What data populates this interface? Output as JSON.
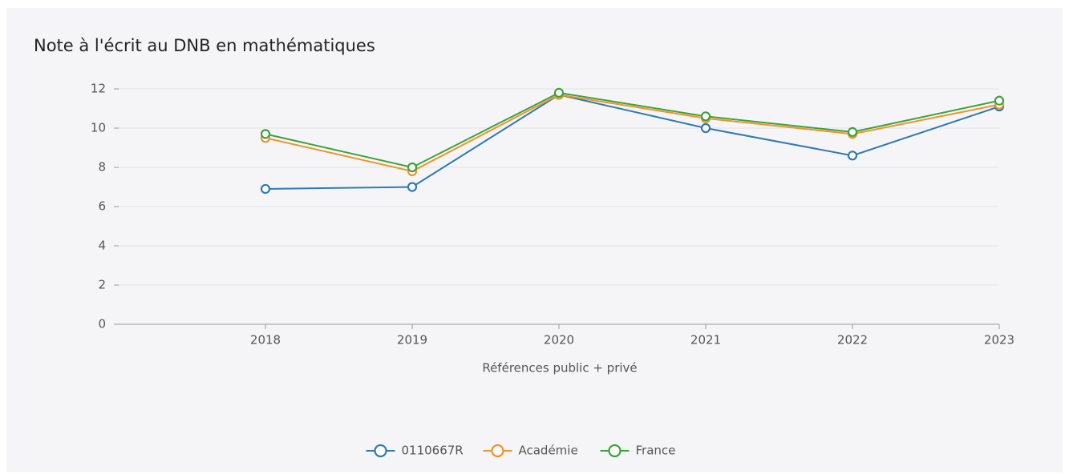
{
  "chart_data": {
    "type": "line",
    "title": "Note à l'écrit au DNB en mathématiques",
    "x_label": "Références public + privé",
    "x": [
      2018,
      2019,
      2020,
      2021,
      2022,
      2023
    ],
    "xlim": [
      2017,
      2023
    ],
    "xticks": [
      2018,
      2019,
      2020,
      2021,
      2022,
      2023
    ],
    "ylim": [
      0,
      12
    ],
    "yticks": [
      0,
      2,
      4,
      6,
      8,
      10,
      12
    ],
    "grid": true,
    "legend": "bottom",
    "series": [
      {
        "name": "0110667R",
        "color": "#2f7ab5",
        "values": [
          6.9,
          7.0,
          11.7,
          10.0,
          8.6,
          11.1
        ]
      },
      {
        "name": "Académie",
        "color": "#f0932b",
        "values": [
          9.5,
          7.8,
          11.7,
          10.5,
          9.7,
          11.2
        ]
      },
      {
        "name": "France",
        "color": "#3aa43a",
        "values": [
          9.7,
          8.0,
          11.8,
          10.6,
          9.8,
          11.4
        ]
      }
    ]
  }
}
